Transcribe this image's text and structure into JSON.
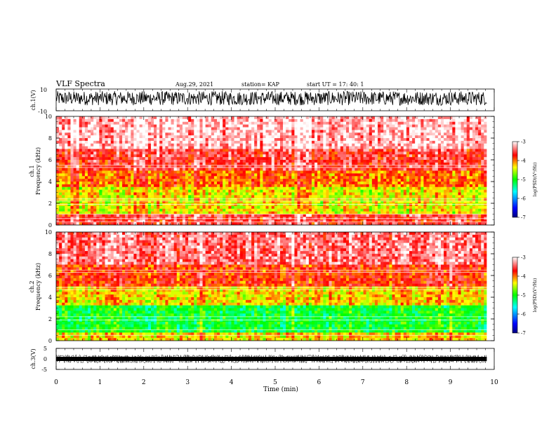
{
  "header": {
    "title": "VLF Spectra",
    "date": "Aug.29, 2021",
    "station": "station= KAP",
    "start": "start UT =  17: 40: 1"
  },
  "chart_data": [
    {
      "type": "line",
      "panel": "ch1-waveform",
      "ylabel": "ch.1(V)",
      "ylim": [
        -10,
        10
      ],
      "yticks": [
        "10",
        "-10"
      ],
      "xlim": [
        0,
        10
      ],
      "x_data_end": 9.83,
      "description_values": {
        "typical_range": [
          -5,
          8
        ]
      }
    },
    {
      "type": "heatmap",
      "panel": "ch1-spectrogram",
      "ylabel": "ch.1",
      "ylabel2": "Frequency (kHz)",
      "ylim": [
        0,
        10
      ],
      "yticks": [
        "0",
        "2",
        "4",
        "6",
        "8",
        "10"
      ],
      "xlim": [
        0,
        10
      ],
      "x_data_end": 9.83,
      "colorbar": {
        "label": "log(PSD)(V²/Hz)",
        "range": [
          -7,
          -3
        ],
        "ticks": [
          "-3",
          "-4",
          "-5",
          "-6",
          "-7"
        ]
      },
      "band_levels_log_psd": [
        {
          "f_range": [
            0,
            1.0
          ],
          "level": -3.6
        },
        {
          "f_range": [
            1.0,
            3.4
          ],
          "level": -4.4
        },
        {
          "f_range": [
            3.4,
            5.0
          ],
          "level": -4.0
        },
        {
          "f_range": [
            5.0,
            7.0
          ],
          "level": -3.6
        },
        {
          "f_range": [
            7.0,
            10.0
          ],
          "level": -3.2
        }
      ],
      "horizontal_lines_khz": [
        0.3,
        0.6,
        1.0,
        1.9,
        2.2,
        2.4,
        5.3,
        5.5
      ]
    },
    {
      "type": "heatmap",
      "panel": "ch2-spectrogram",
      "ylabel": "ch.2",
      "ylabel2": "Frequency (kHz)",
      "ylim": [
        0,
        10
      ],
      "yticks": [
        "0",
        "2",
        "4",
        "6",
        "8",
        "10"
      ],
      "xlim": [
        0,
        10
      ],
      "x_data_end": 9.83,
      "colorbar": {
        "label": "log(PSD)(V²/Hz)",
        "range": [
          -7,
          -3
        ],
        "ticks": [
          "-3",
          "-4",
          "-5",
          "-6",
          "-7"
        ]
      },
      "band_levels_log_psd": [
        {
          "f_range": [
            0,
            0.7
          ],
          "level": -4.3
        },
        {
          "f_range": [
            0.7,
            3.2
          ],
          "level": -5.1
        },
        {
          "f_range": [
            3.2,
            5.0
          ],
          "level": -4.3
        },
        {
          "f_range": [
            5.0,
            7.0
          ],
          "level": -3.8
        },
        {
          "f_range": [
            7.0,
            10.0
          ],
          "level": -3.4
        }
      ],
      "horizontal_lines_khz": [
        0.5,
        1.0,
        1.9,
        2.2,
        4.7,
        4.9,
        6.3,
        6.5
      ]
    },
    {
      "type": "line",
      "panel": "ch3-waveform",
      "ylabel": "ch.3(V)",
      "ylim": [
        -5,
        5
      ],
      "yticks": [
        "5",
        "0",
        "-5"
      ],
      "xlim": [
        0,
        10
      ],
      "x_data_end": 9.83,
      "xlabel": "Time (min)",
      "xticks": [
        "0",
        "1",
        "2",
        "3",
        "4",
        "5",
        "6",
        "7",
        "8",
        "9",
        "10"
      ],
      "description_values": {
        "typical_range": [
          -1,
          1
        ]
      }
    }
  ]
}
